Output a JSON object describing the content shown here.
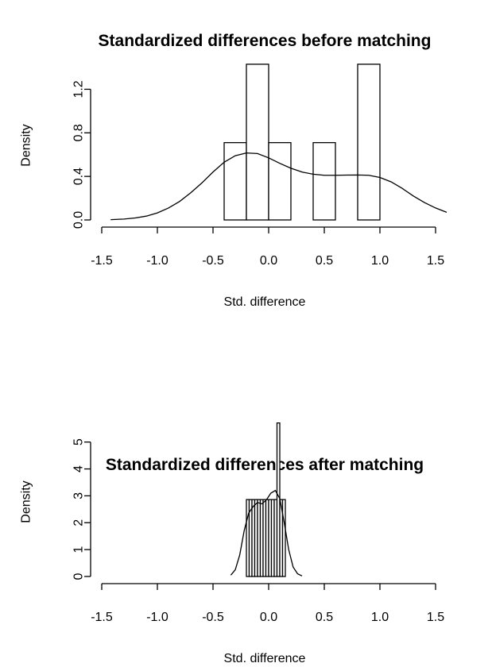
{
  "chart_data": [
    {
      "type": "histogram",
      "title": "Standardized differences before matching",
      "xlabel": "Std. difference",
      "ylabel": "Density",
      "xlim": [
        -1.5,
        1.6
      ],
      "ylim": [
        0,
        1.4
      ],
      "x_ticks": [
        "-1.5",
        "-1.0",
        "-0.5",
        "0.0",
        "0.5",
        "1.0",
        "1.5"
      ],
      "y_ticks": [
        "0.0",
        "0.4",
        "0.8",
        "1.2"
      ],
      "bins": [
        {
          "x0": -0.4,
          "x1": -0.2,
          "density": 0.71
        },
        {
          "x0": -0.2,
          "x1": 0.0,
          "density": 1.43
        },
        {
          "x0": 0.0,
          "x1": 0.2,
          "density": 0.71
        },
        {
          "x0": 0.2,
          "x1": 0.4,
          "density": 0.0
        },
        {
          "x0": 0.4,
          "x1": 0.6,
          "density": 0.71
        },
        {
          "x0": 0.6,
          "x1": 0.8,
          "density": 0.0
        },
        {
          "x0": 0.8,
          "x1": 1.0,
          "density": 1.43
        }
      ],
      "density_curve": {
        "x": [
          -1.42,
          -1.3,
          -1.2,
          -1.1,
          -1.0,
          -0.9,
          -0.8,
          -0.7,
          -0.6,
          -0.5,
          -0.4,
          -0.3,
          -0.2,
          -0.1,
          0.0,
          0.1,
          0.2,
          0.3,
          0.4,
          0.5,
          0.6,
          0.7,
          0.8,
          0.9,
          1.0,
          1.1,
          1.2,
          1.3,
          1.4,
          1.5,
          1.6
        ],
        "y": [
          0.003,
          0.008,
          0.018,
          0.035,
          0.065,
          0.11,
          0.17,
          0.25,
          0.34,
          0.44,
          0.53,
          0.59,
          0.615,
          0.61,
          0.57,
          0.52,
          0.475,
          0.44,
          0.42,
          0.41,
          0.41,
          0.412,
          0.413,
          0.41,
          0.39,
          0.35,
          0.29,
          0.22,
          0.16,
          0.11,
          0.07
        ]
      }
    },
    {
      "type": "histogram",
      "title": "Standardized differences after matching",
      "xlabel": "Std. difference",
      "ylabel": "Density",
      "xlim": [
        -1.5,
        1.6
      ],
      "ylim": [
        0,
        5.7
      ],
      "x_ticks": [
        "-1.5",
        "-1.0",
        "-0.5",
        "0.0",
        "0.5",
        "1.0",
        "1.5"
      ],
      "y_ticks": [
        "0",
        "1",
        "2",
        "3",
        "4",
        "5"
      ],
      "bins": [
        {
          "x0": -0.2,
          "x1": -0.175,
          "density": 2.86
        },
        {
          "x0": -0.175,
          "x1": -0.15,
          "density": 2.86
        },
        {
          "x0": -0.15,
          "x1": -0.125,
          "density": 2.86
        },
        {
          "x0": -0.125,
          "x1": -0.1,
          "density": 2.86
        },
        {
          "x0": -0.1,
          "x1": -0.075,
          "density": 2.86
        },
        {
          "x0": -0.075,
          "x1": -0.05,
          "density": 2.86
        },
        {
          "x0": -0.05,
          "x1": -0.025,
          "density": 2.86
        },
        {
          "x0": -0.025,
          "x1": 0.0,
          "density": 2.86
        },
        {
          "x0": 0.0,
          "x1": 0.025,
          "density": 2.86
        },
        {
          "x0": 0.025,
          "x1": 0.05,
          "density": 2.86
        },
        {
          "x0": 0.05,
          "x1": 0.075,
          "density": 2.86
        },
        {
          "x0": 0.075,
          "x1": 0.1,
          "density": 5.71
        },
        {
          "x0": 0.1,
          "x1": 0.125,
          "density": 2.86
        },
        {
          "x0": 0.125,
          "x1": 0.15,
          "density": 2.86
        }
      ],
      "density_curve": {
        "x": [
          -0.34,
          -0.3,
          -0.26,
          -0.22,
          -0.18,
          -0.14,
          -0.1,
          -0.06,
          -0.02,
          0.02,
          0.06,
          0.1,
          0.14,
          0.18,
          0.22,
          0.26,
          0.3
        ],
        "y": [
          0.05,
          0.25,
          0.8,
          1.7,
          2.35,
          2.6,
          2.75,
          2.7,
          2.85,
          3.1,
          3.2,
          2.9,
          2.0,
          1.0,
          0.35,
          0.1,
          0.02
        ]
      }
    }
  ]
}
